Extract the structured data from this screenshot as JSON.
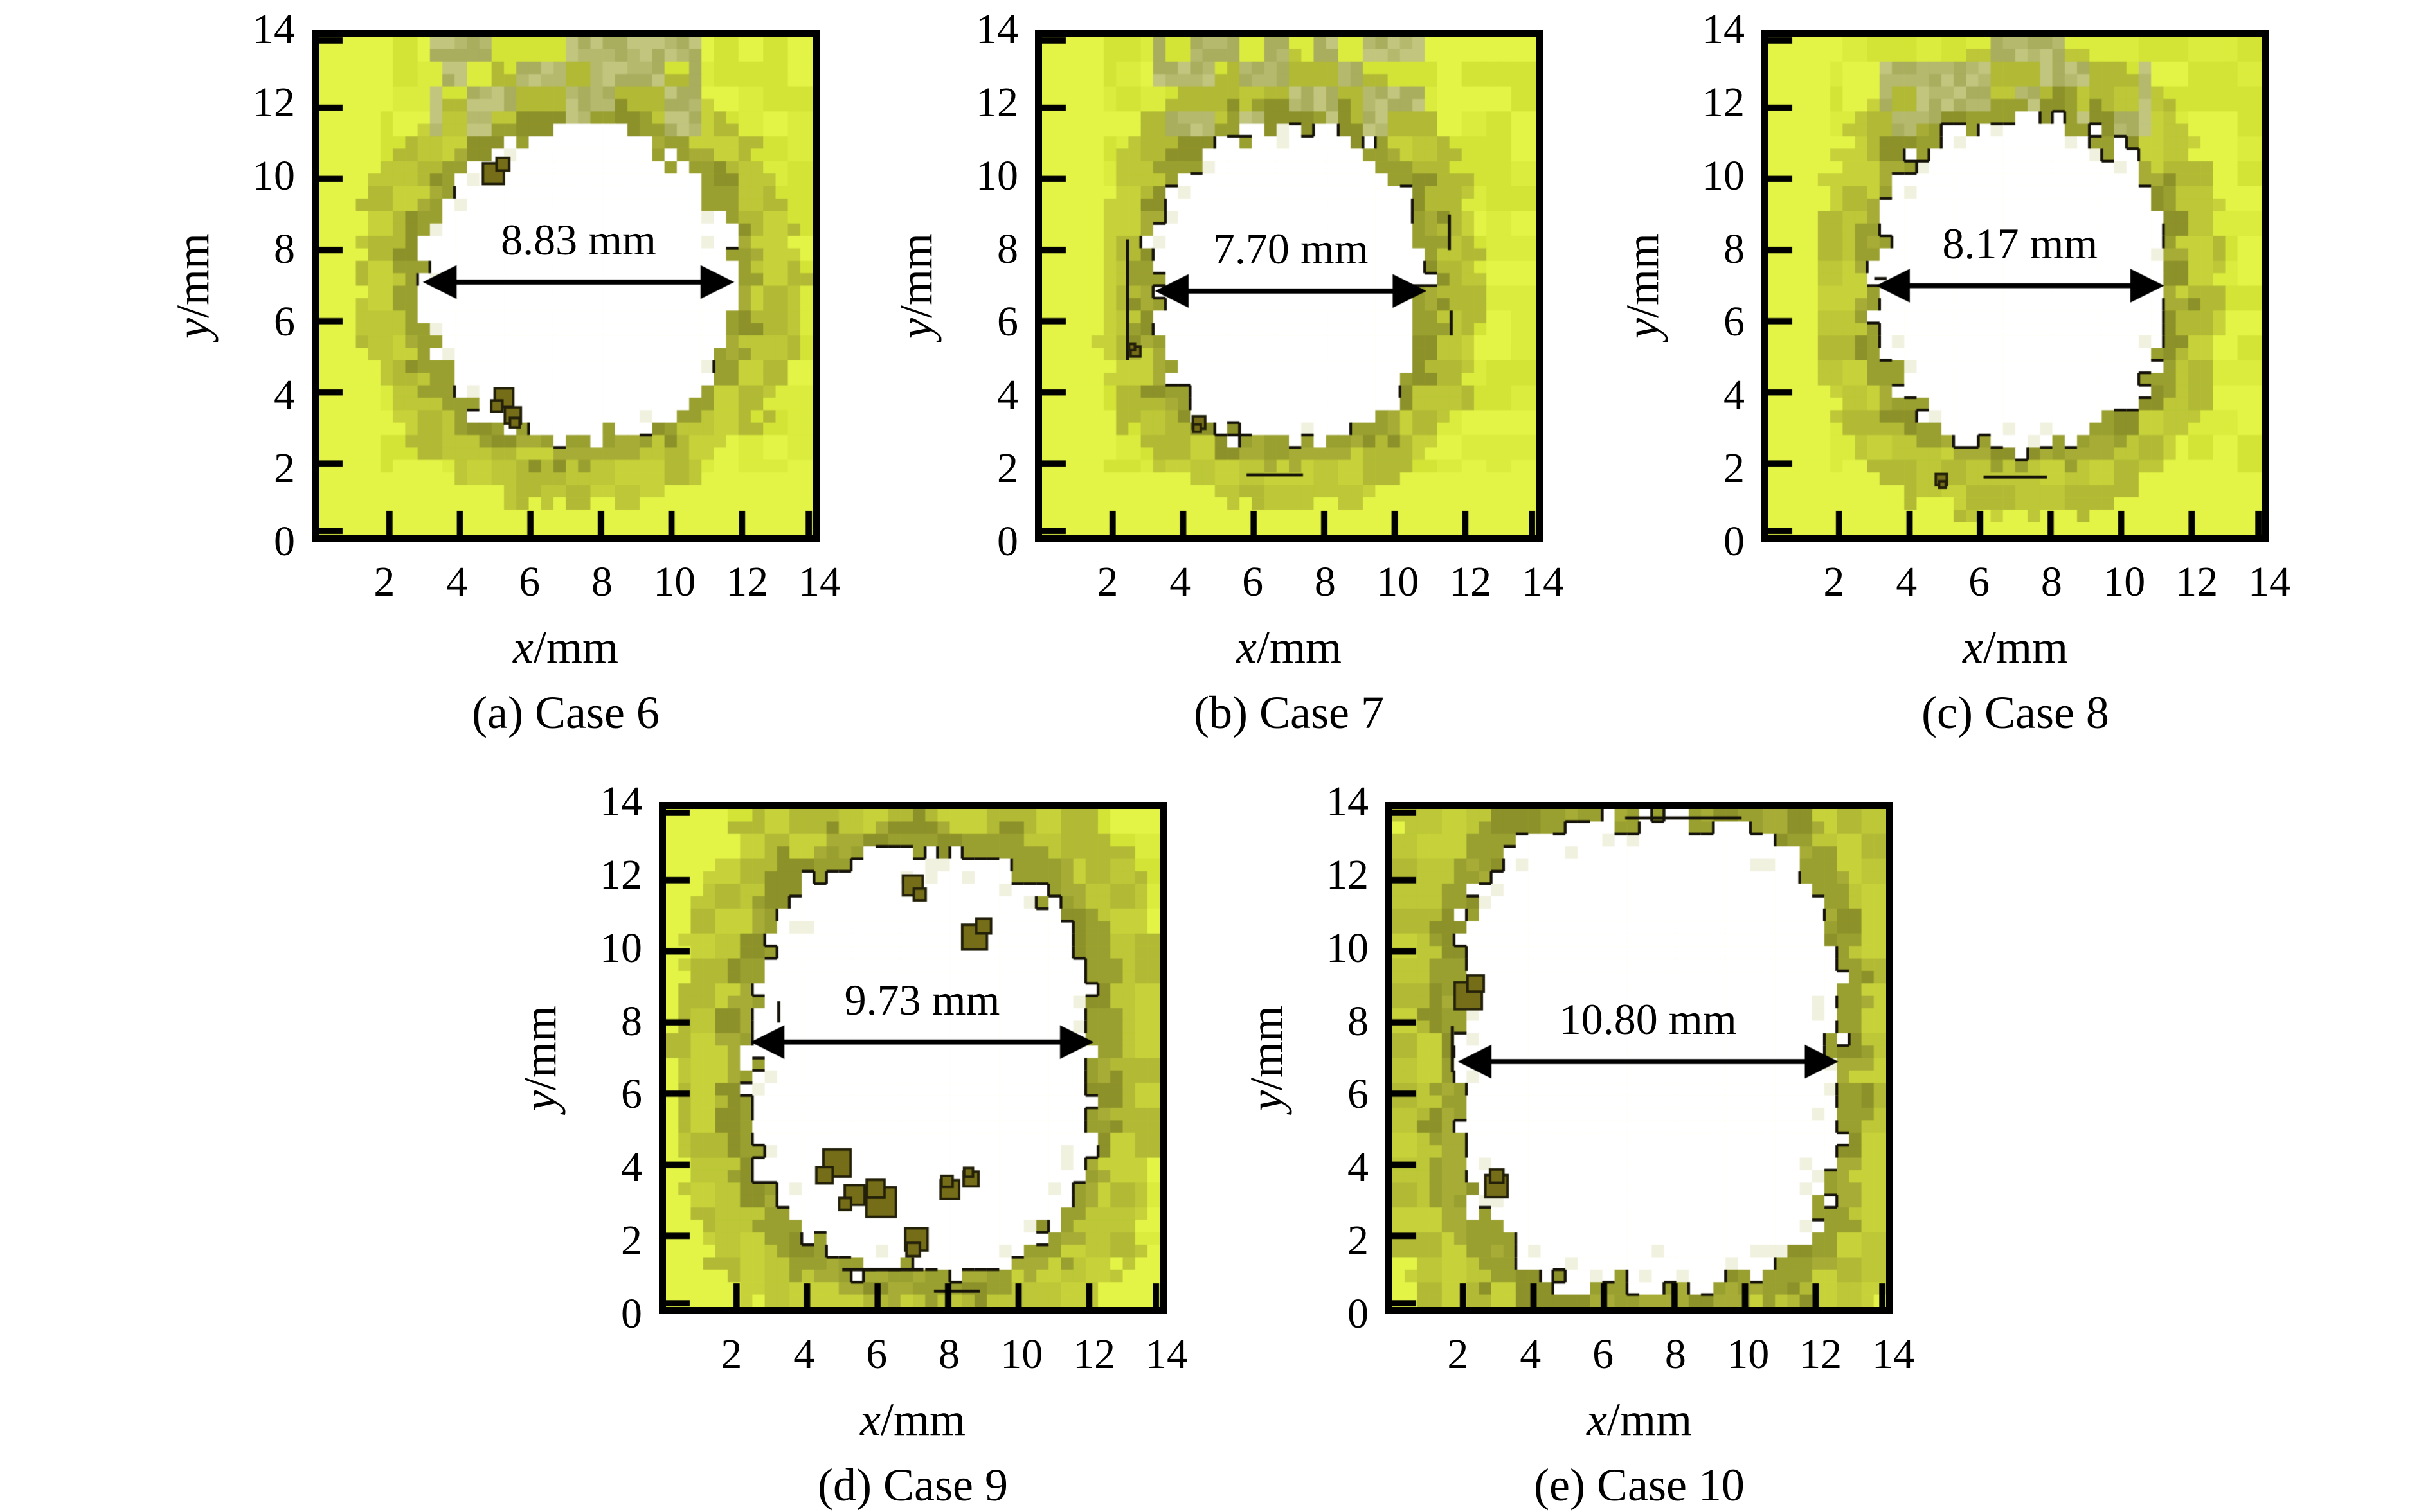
{
  "figure": {
    "axes": {
      "x_var": "x",
      "y_var": "y",
      "label_suffix": "/mm",
      "x_ticks": [
        "2",
        "4",
        "6",
        "8",
        "10",
        "12",
        "14"
      ],
      "y_ticks": [
        "0",
        "2",
        "4",
        "6",
        "8",
        "10",
        "12",
        "14"
      ],
      "x_range": [
        0,
        14
      ],
      "y_range": [
        0,
        14
      ]
    },
    "palette": {
      "hole_white": "#ffffff",
      "hole_cream": "#f1f1df",
      "ring_tones": [
        "#8d9129",
        "#9aa030",
        "#a7ac36"
      ],
      "mid_tones": [
        "#b2ba35",
        "#bdc737",
        "#c7d23a"
      ],
      "bright_tones": [
        "#d4e437",
        "#dbec3e",
        "#e3f447"
      ],
      "smudge_tones": [
        "#a9ad5e",
        "#b5b96e",
        "#c1c57e"
      ],
      "contour": "#15130a",
      "speck_fill": "#756d17",
      "speck_edge": "#23200a",
      "text": "#000000"
    }
  },
  "chart_data": [
    {
      "type": "heatmap",
      "panel": "(a)",
      "case": "Case 6",
      "caption": "(a) Case 6",
      "diameter_label": "8.83 mm",
      "diameter_mm": 8.83,
      "xlabel": "x/mm",
      "ylabel": "y/mm",
      "xlim": [
        0,
        14
      ],
      "ylim": [
        0,
        14
      ],
      "hole": {
        "cx": 7.35,
        "cy": 7.05,
        "rx": 4.42,
        "ry": 4.4,
        "squareness": 2.1
      },
      "arrow": {
        "x1": 2.95,
        "x2": 11.78,
        "y": 7.1
      },
      "defects": [
        [
          4.95,
          10.15,
          1.7
        ],
        [
          5.25,
          3.85,
          1.5
        ],
        [
          5.5,
          3.35,
          1.3
        ]
      ],
      "extra_marks": [],
      "contour_density": 0.06,
      "top_smudge": true,
      "seed": 6
    },
    {
      "type": "heatmap",
      "panel": "(b)",
      "case": "Case 7",
      "caption": "(b) Case 7",
      "diameter_label": "7.70 mm",
      "diameter_mm": 7.7,
      "xlabel": "x/mm",
      "ylabel": "y/mm",
      "xlim": [
        0,
        14
      ],
      "ylim": [
        0,
        14
      ],
      "hole": {
        "cx": 7.0,
        "cy": 7.0,
        "rx": 3.85,
        "ry": 4.45,
        "squareness": 2.2
      },
      "arrow": {
        "x1": 3.2,
        "x2": 10.9,
        "y": 6.85
      },
      "defects": [
        [
          4.45,
          3.15,
          1.0
        ],
        [
          2.65,
          5.15,
          0.8
        ]
      ],
      "extra_marks": [
        [
          2.42,
          4.9,
          2.42,
          8.3
        ],
        [
          11.55,
          8.0,
          11.55,
          9.0
        ],
        [
          11.6,
          5.6,
          11.6,
          6.3
        ],
        [
          5.8,
          1.68,
          7.4,
          1.68
        ]
      ],
      "contour_density": 0.38,
      "top_smudge": true,
      "seed": 7
    },
    {
      "type": "heatmap",
      "panel": "(c)",
      "case": "Case 8",
      "caption": "(c) Case 8",
      "diameter_label": "8.17 mm",
      "diameter_mm": 8.17,
      "xlabel": "x/mm",
      "ylabel": "y/mm",
      "xlim": [
        0,
        14
      ],
      "ylim": [
        0,
        14
      ],
      "hole": {
        "cx": 7.13,
        "cy": 7.1,
        "rx": 4.08,
        "ry": 4.6,
        "squareness": 2.4
      },
      "arrow": {
        "x1": 3.05,
        "x2": 11.22,
        "y": 7.0
      },
      "defects": [
        [
          4.9,
          1.55,
          0.9
        ]
      ],
      "extra_marks": [
        [
          6.1,
          1.62,
          7.9,
          1.62
        ],
        [
          3.0,
          7.2,
          3.35,
          7.2
        ]
      ],
      "contour_density": 0.58,
      "top_smudge": true,
      "seed": 8
    },
    {
      "type": "heatmap",
      "panel": "(d)",
      "case": "Case 9",
      "caption": "(d) Case 9",
      "diameter_label": "9.73 mm",
      "diameter_mm": 9.73,
      "xlabel": "x/mm",
      "ylabel": "y/mm",
      "xlim": [
        0,
        14
      ],
      "ylim": [
        0,
        14
      ],
      "hole": {
        "cx": 7.26,
        "cy": 6.9,
        "rx": 4.86,
        "ry": 5.9,
        "squareness": 2.6
      },
      "arrow": {
        "x1": 2.4,
        "x2": 12.13,
        "y": 7.45
      },
      "defects": [
        [
          7.0,
          11.85,
          1.6
        ],
        [
          8.75,
          10.4,
          2.0
        ],
        [
          4.85,
          4.05,
          2.2
        ],
        [
          5.35,
          3.15,
          1.6
        ],
        [
          6.1,
          2.95,
          2.4
        ],
        [
          7.1,
          1.9,
          1.8
        ],
        [
          8.05,
          3.3,
          1.5
        ],
        [
          8.65,
          3.6,
          1.2
        ]
      ],
      "extra_marks": [
        [
          5.0,
          1.05,
          7.3,
          1.05
        ],
        [
          7.6,
          0.45,
          8.9,
          0.45
        ],
        [
          3.2,
          8.0,
          3.2,
          8.6
        ]
      ],
      "contour_density": 0.62,
      "top_smudge": false,
      "seed": 9
    },
    {
      "type": "heatmap",
      "panel": "(e)",
      "case": "Case 10",
      "caption": "(e) Case 10",
      "diameter_label": "10.80 mm",
      "diameter_mm": 10.8,
      "xlabel": "x/mm",
      "ylabel": "y/mm",
      "xlim": [
        0,
        14
      ],
      "ylim": [
        0,
        14
      ],
      "hole": {
        "cx": 7.25,
        "cy": 7.15,
        "rx": 5.4,
        "ry": 6.55,
        "squareness": 3.2
      },
      "arrow": {
        "x1": 1.85,
        "x2": 12.65,
        "y": 6.9
      },
      "defects": [
        [
          2.15,
          8.75,
          2.2
        ],
        [
          2.95,
          3.4,
          1.8
        ]
      ],
      "extra_marks": [
        [
          6.6,
          13.75,
          9.9,
          13.75
        ],
        [
          1.7,
          6.6,
          1.7,
          7.9
        ]
      ],
      "contour_density": 0.5,
      "top_smudge": false,
      "seed": 10
    }
  ]
}
